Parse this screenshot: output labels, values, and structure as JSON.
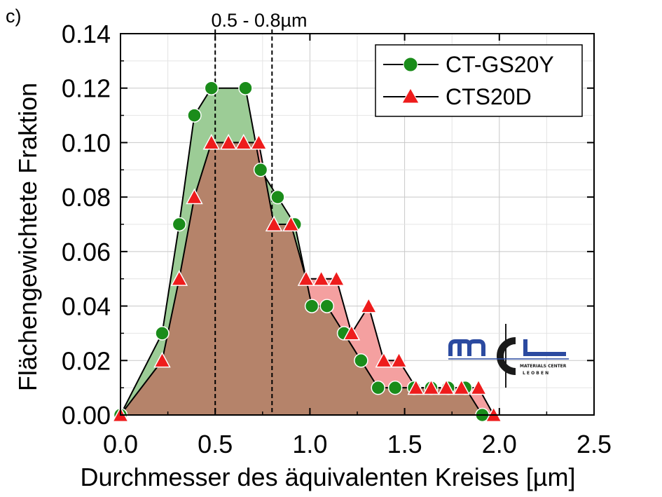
{
  "panel_label": "c)",
  "chart_data": {
    "type": "area",
    "xlabel": "Durchmesser des äquivalenten Kreises [µm]",
    "ylabel": "Flächengewichtete Fraktion",
    "xlim": [
      0,
      2.5
    ],
    "ylim": [
      0,
      0.14
    ],
    "xticks": [
      "0.0",
      "0.5",
      "1.0",
      "1.5",
      "2.0",
      "2.5"
    ],
    "yticks": [
      "0.00",
      "0.02",
      "0.04",
      "0.06",
      "0.08",
      "0.10",
      "0.12",
      "0.14"
    ],
    "grid": true,
    "legend_position": "top-right",
    "annotation": {
      "text": "0.5 -  0.8µm",
      "vlines": [
        0.5,
        0.8
      ]
    },
    "series": [
      {
        "name": "CT-GS20Y",
        "marker": "circle",
        "color": "#1a8c1a",
        "fill": "#9ccc96",
        "x": [
          0.0,
          0.22,
          0.31,
          0.39,
          0.48,
          0.66,
          0.74,
          0.83,
          0.92,
          1.01,
          1.09,
          1.18,
          1.27,
          1.36,
          1.45,
          1.55,
          1.64,
          1.73,
          1.82,
          1.91
        ],
        "y": [
          0.0,
          0.03,
          0.07,
          0.11,
          0.12,
          0.12,
          0.09,
          0.08,
          0.07,
          0.04,
          0.04,
          0.03,
          0.02,
          0.01,
          0.01,
          0.01,
          0.01,
          0.01,
          0.01,
          0.0
        ]
      },
      {
        "name": "CTS20D",
        "marker": "triangle",
        "color": "#ee1c1c",
        "fill": "#f4a0a0",
        "x": [
          0.0,
          0.22,
          0.31,
          0.39,
          0.48,
          0.57,
          0.65,
          0.73,
          0.81,
          0.9,
          0.98,
          1.06,
          1.14,
          1.22,
          1.31,
          1.39,
          1.47,
          1.56,
          1.64,
          1.72,
          1.8,
          1.89,
          1.97
        ],
        "y": [
          0.0,
          0.02,
          0.05,
          0.08,
          0.1,
          0.1,
          0.1,
          0.1,
          0.07,
          0.07,
          0.05,
          0.05,
          0.05,
          0.03,
          0.04,
          0.02,
          0.02,
          0.01,
          0.01,
          0.01,
          0.01,
          0.01,
          0.0
        ]
      }
    ],
    "overlap_fill": "#b5836a"
  },
  "logo": {
    "letters": "MCL",
    "line1": "MATERIALS CENTER",
    "line2": "L E O B E N",
    "blue": "#2b4aa0",
    "dark": "#1a1a1a"
  }
}
